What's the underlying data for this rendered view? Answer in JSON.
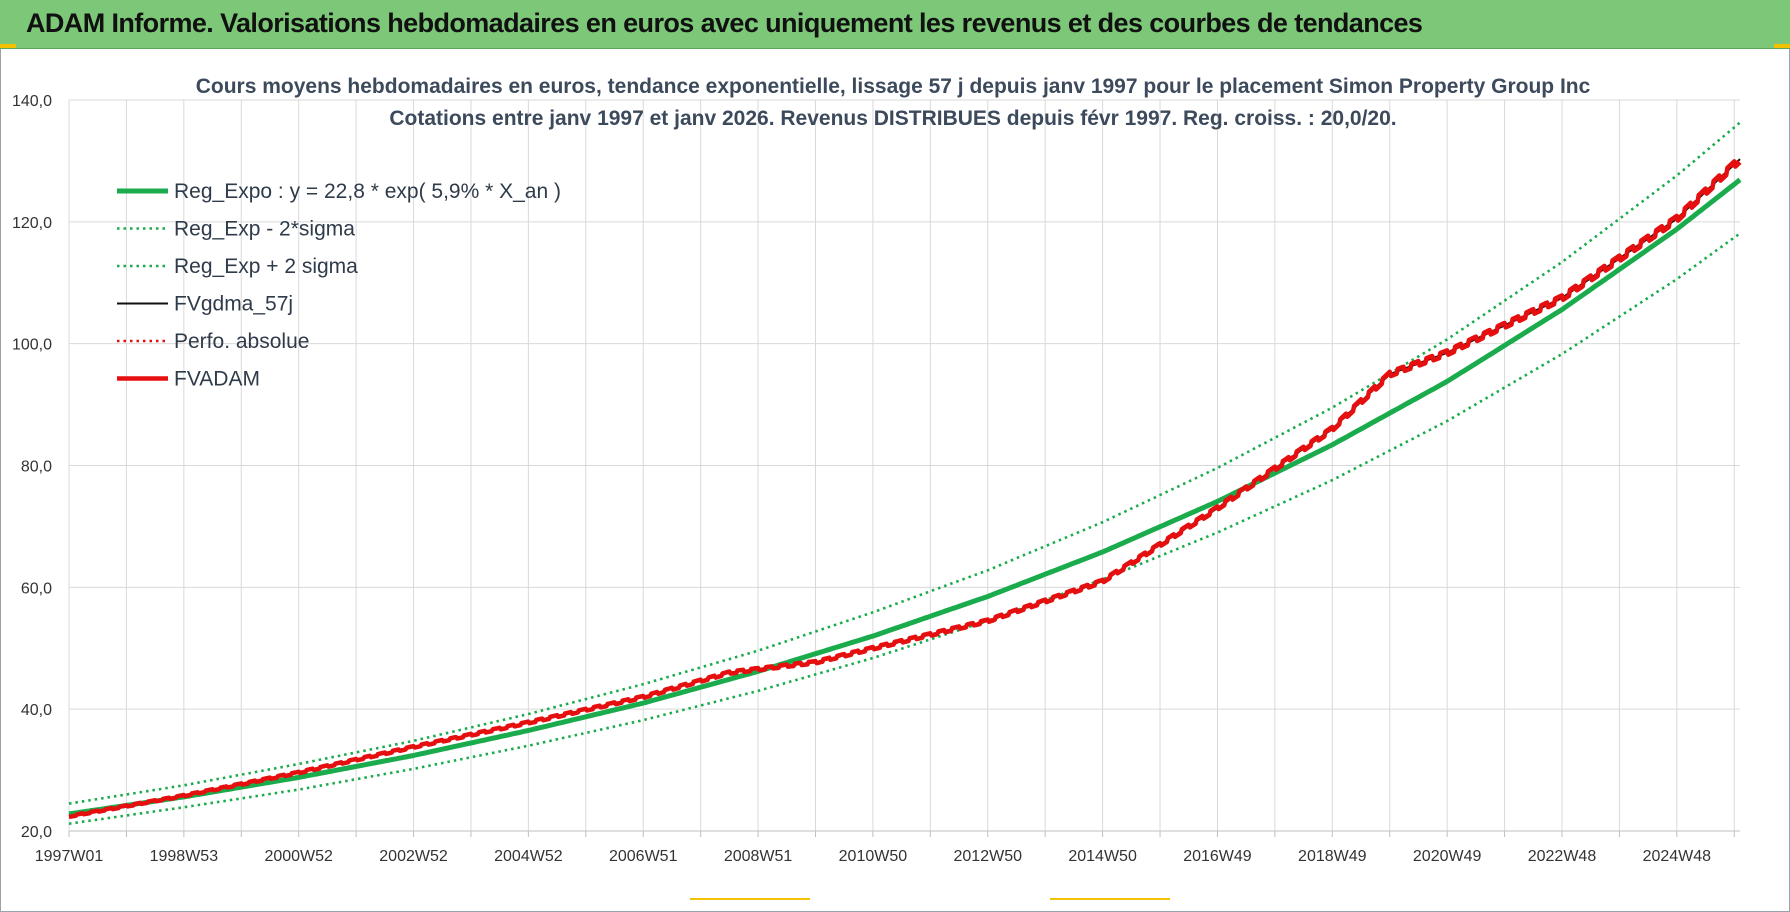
{
  "header": {
    "title": "ADAM Informe. Valorisations hebdomadaires en euros avec uniquement les revenus et des courbes de tendances"
  },
  "colors": {
    "header_bg": "#7dc878",
    "trend_green": "#1aab4c",
    "fv_red": "#e50f0f",
    "grid": "#d9d9d9"
  },
  "chart_data": {
    "type": "line",
    "title": "Cours moyens hebdomadaires en euros, tendance exponentielle, lissage 57 j depuis janv 1997 pour le placement Simon Property Group Inc",
    "subtitle": "Cotations entre janv 1997 et janv 2026. Revenus DISTRIBUES depuis févr 1997. Reg. croiss. : 20,0/20.",
    "xlabel": "",
    "ylabel": "",
    "ylim": [
      20,
      140
    ],
    "y_ticks": [
      "20,0",
      "40,0",
      "60,0",
      "80,0",
      "100,0",
      "120,0",
      "140,0"
    ],
    "xlim": [
      1997.0,
      2026.1
    ],
    "x_ticks": [
      {
        "label": "1997W01",
        "year": 1997.0
      },
      {
        "label": "1998W53",
        "year": 1999.0
      },
      {
        "label": "2000W52",
        "year": 2001.0
      },
      {
        "label": "2002W52",
        "year": 2003.0
      },
      {
        "label": "2004W52",
        "year": 2005.0
      },
      {
        "label": "2006W51",
        "year": 2007.0
      },
      {
        "label": "2008W51",
        "year": 2009.0
      },
      {
        "label": "2010W50",
        "year": 2011.0
      },
      {
        "label": "2012W50",
        "year": 2013.0
      },
      {
        "label": "2014W50",
        "year": 2015.0
      },
      {
        "label": "2016W49",
        "year": 2017.0
      },
      {
        "label": "2018W49",
        "year": 2019.0
      },
      {
        "label": "2020W49",
        "year": 2021.0
      },
      {
        "label": "2022W48",
        "year": 2023.0
      },
      {
        "label": "2024W48",
        "year": 2025.0
      }
    ],
    "grid": true,
    "legend_position": "top-left",
    "series": [
      {
        "name": "Reg_Expo : y = 22,8 * exp( 5,9% *  X_an )",
        "style": "solid-thick",
        "color": "#1aab4c",
        "x": [
          1997,
          1999,
          2001,
          2003,
          2005,
          2007,
          2009,
          2011,
          2013,
          2015,
          2017,
          2019,
          2021,
          2023,
          2025,
          2026.1
        ],
        "values": [
          22.8,
          25.6,
          28.8,
          32.4,
          36.5,
          41.0,
          46.2,
          52.0,
          58.5,
          65.8,
          74.1,
          83.4,
          93.8,
          105.6,
          118.8,
          126.9
        ]
      },
      {
        "name": "Reg_Exp - 2*sigma",
        "style": "dotted",
        "color": "#1aab4c",
        "x": [
          1997,
          1999,
          2001,
          2003,
          2005,
          2007,
          2009,
          2011,
          2013,
          2015,
          2017,
          2019,
          2021,
          2023,
          2025,
          2026.1
        ],
        "values": [
          21.2,
          23.9,
          26.8,
          30.2,
          34.0,
          38.2,
          43.0,
          48.4,
          54.5,
          61.3,
          69.0,
          77.6,
          87.3,
          98.3,
          110.6,
          118.1
        ]
      },
      {
        "name": "Reg_Exp + 2 sigma",
        "style": "dotted",
        "color": "#1aab4c",
        "x": [
          1997,
          1999,
          2001,
          2003,
          2005,
          2007,
          2009,
          2011,
          2013,
          2015,
          2017,
          2019,
          2021,
          2023,
          2025,
          2026.1
        ],
        "values": [
          24.5,
          27.5,
          31.0,
          34.8,
          39.2,
          44.1,
          49.6,
          55.9,
          62.8,
          70.7,
          79.6,
          89.5,
          100.7,
          113.4,
          127.6,
          136.3
        ]
      },
      {
        "name": "FVgdma_57j",
        "style": "solid",
        "color": "#111111",
        "x": [
          1997,
          1999,
          2001,
          2003,
          2005,
          2007,
          2008.5,
          2010,
          2011,
          2013,
          2015,
          2017,
          2019,
          2020,
          2021,
          2023,
          2025,
          2026.1
        ],
        "values": [
          22.4,
          25.8,
          29.6,
          33.8,
          37.8,
          42.0,
          46.0,
          47.7,
          50.0,
          54.5,
          61.0,
          73.0,
          86.0,
          95.0,
          98.5,
          107.5,
          120.5,
          130.3
        ]
      },
      {
        "name": "Perfo. absolue",
        "style": "dotted",
        "color": "#e50f0f",
        "x": [
          1997,
          1999,
          2001,
          2003,
          2005,
          2007,
          2008.5,
          2010,
          2011,
          2013,
          2015,
          2017,
          2019,
          2020,
          2021,
          2023,
          2025,
          2026.1
        ],
        "values": [
          22.4,
          25.8,
          29.6,
          33.8,
          37.8,
          42.0,
          46.0,
          47.7,
          50.0,
          54.5,
          61.0,
          73.0,
          86.0,
          95.0,
          98.5,
          107.5,
          120.5,
          130.3
        ]
      },
      {
        "name": "FVADAM",
        "style": "solid-thick-stepped",
        "color": "#e50f0f",
        "x": [
          1997,
          1999,
          2001,
          2003,
          2005,
          2007,
          2008.5,
          2010,
          2011,
          2013,
          2015,
          2017,
          2019,
          2020,
          2021,
          2023,
          2025,
          2026.1
        ],
        "values": [
          22.4,
          25.8,
          29.6,
          33.8,
          37.8,
          42.0,
          46.0,
          47.7,
          50.0,
          54.5,
          61.0,
          73.0,
          86.0,
          95.0,
          98.5,
          107.5,
          120.5,
          130.3
        ]
      }
    ]
  }
}
